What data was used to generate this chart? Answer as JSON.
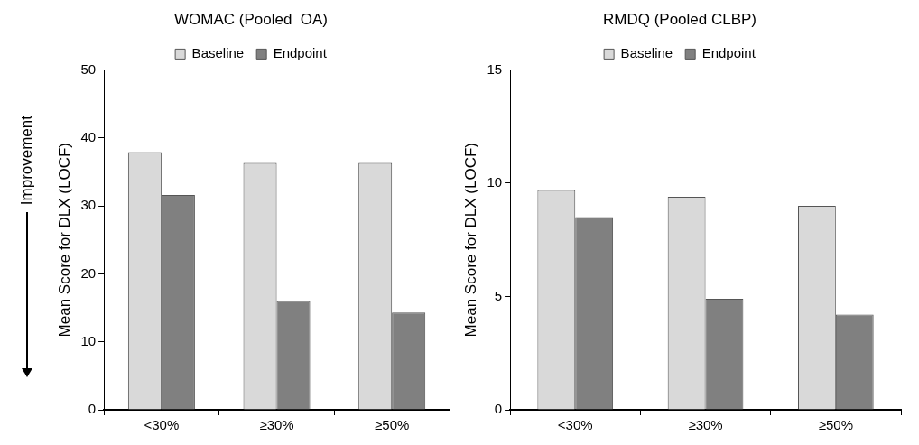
{
  "chart_data": [
    {
      "type": "bar",
      "title": "WOMAC (Pooled  OA)",
      "ylabel": "Mean Score for DLX (LOCF)",
      "annotations": [
        "Improvement"
      ],
      "categories": [
        "<30%",
        "≥30%",
        "≥50%"
      ],
      "series": [
        {
          "name": "Baseline",
          "color": "#d9d9d9",
          "values": [
            37.9,
            36.3,
            36.3
          ]
        },
        {
          "name": "Endpoint",
          "color": "#808080",
          "values": [
            31.6,
            16.0,
            14.3
          ]
        }
      ],
      "ylim": [
        0,
        50
      ],
      "yticks": [
        0,
        10,
        20,
        30,
        40,
        50
      ],
      "grid": false,
      "legend": "top"
    },
    {
      "type": "bar",
      "title": "RMDQ (Pooled CLBP)",
      "ylabel": "Mean Score for DLX (LOCF)",
      "categories": [
        "<30%",
        "≥30%",
        "≥50%"
      ],
      "series": [
        {
          "name": "Baseline",
          "color": "#d9d9d9",
          "values": [
            9.7,
            9.4,
            9.0
          ]
        },
        {
          "name": "Endpoint",
          "color": "#808080",
          "values": [
            8.5,
            4.9,
            4.2
          ]
        }
      ],
      "ylim": [
        0,
        15
      ],
      "yticks": [
        0,
        5,
        10,
        15
      ],
      "grid": false,
      "legend": "top"
    }
  ]
}
